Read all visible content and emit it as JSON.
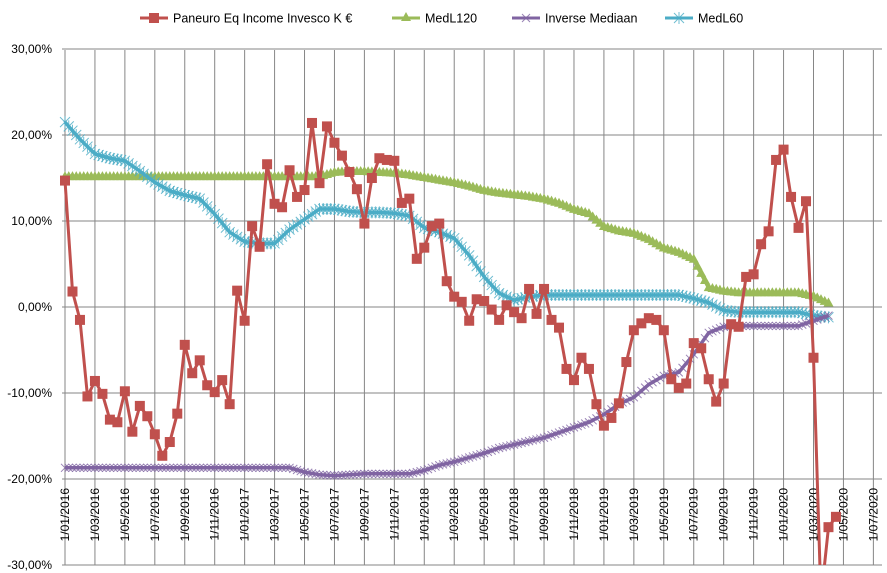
{
  "chart_data": {
    "type": "line",
    "title": "",
    "xlabel": "",
    "ylabel": "",
    "ylim": [
      -30,
      30
    ],
    "y_ticks": [
      30,
      20,
      10,
      0,
      -10,
      -20,
      -30
    ],
    "y_tick_labels": [
      "30,00%",
      "20,00%",
      "10,00%",
      "0,00%",
      "-10,00%",
      "-20,00%",
      "-30,00%"
    ],
    "x_unit": "months since 1/01/2016",
    "xlim": [
      0,
      54
    ],
    "x_tick_labels": [
      "1/01/2016",
      "1/03/2016",
      "1/05/2016",
      "1/07/2016",
      "1/09/2016",
      "1/11/2016",
      "1/01/2017",
      "1/03/2017",
      "1/05/2017",
      "1/07/2017",
      "1/09/2017",
      "1/11/2017",
      "1/01/2018",
      "1/03/2018",
      "1/05/2018",
      "1/07/2018",
      "1/09/2018",
      "1/11/2018",
      "1/01/2019",
      "1/03/2019",
      "1/05/2019",
      "1/07/2019",
      "1/09/2019",
      "1/11/2019",
      "1/01/2020",
      "1/03/2020",
      "1/05/2020",
      "1/07/2020"
    ],
    "grid": true,
    "legend_position": "top",
    "series": [
      {
        "name": "Paneuro Eq Income Invesco K €",
        "color": "#C0504D",
        "marker": "square",
        "x_step_months": 0.5,
        "values": [
          14.7,
          1.8,
          -1.5,
          -10.4,
          -8.6,
          -10.1,
          -13.1,
          -13.4,
          -9.8,
          -14.5,
          -11.5,
          -12.7,
          -14.8,
          -17.3,
          -15.7,
          -12.4,
          -4.4,
          -7.7,
          -6.2,
          -9.1,
          -9.9,
          -8.5,
          -11.3,
          1.9,
          -1.6,
          9.4,
          7.0,
          16.6,
          12.0,
          11.6,
          15.9,
          12.8,
          13.6,
          21.4,
          14.4,
          21.0,
          19.1,
          17.6,
          15.7,
          13.7,
          9.7,
          15.0,
          17.3,
          17.1,
          17.0,
          12.1,
          12.6,
          5.6,
          6.9,
          9.4,
          9.7,
          3.0,
          1.2,
          0.6,
          -1.6,
          0.9,
          0.7,
          -0.3,
          -1.5,
          0.2,
          -0.6,
          -1.3,
          2.1,
          -0.8,
          2.1,
          -1.5,
          -2.4,
          -7.2,
          -8.5,
          -5.9,
          -7.2,
          -11.3,
          -13.8,
          -12.9,
          -11.2,
          -6.4,
          -2.7,
          -1.9,
          -1.3,
          -1.5,
          -2.7,
          -8.4,
          -9.4,
          -8.9,
          -4.2,
          -4.8,
          -8.4,
          -11.0,
          -8.9,
          -2.0,
          -2.3,
          3.5,
          3.8,
          7.3,
          8.8,
          17.1,
          18.3,
          12.8,
          9.2,
          12.3,
          -5.9,
          -34,
          -25.6,
          -24.4
        ]
      },
      {
        "name": "MedL120",
        "color": "#9BBB59",
        "marker": "triangle",
        "x_step_months": 1,
        "values": [
          15.1,
          15.1,
          15.1,
          15.1,
          15.1,
          15.1,
          15.1,
          15.1,
          15.1,
          15.1,
          15.1,
          15.1,
          15.1,
          15.1,
          15.1,
          15.1,
          15.1,
          15.1,
          15.6,
          15.7,
          15.7,
          15.6,
          15.5,
          15.3,
          15.0,
          14.7,
          14.4,
          14.0,
          13.5,
          13.2,
          13.0,
          12.8,
          12.5,
          12.0,
          11.3,
          10.8,
          9.3,
          8.8,
          8.5,
          7.8,
          6.8,
          6.3,
          5.5,
          2.2,
          1.8,
          1.6,
          1.6,
          1.6,
          1.6,
          1.6,
          1.2,
          0.4
        ]
      },
      {
        "name": "Inverse Mediaan",
        "color": "#8064A2",
        "marker": "x",
        "x_step_months": 1,
        "values": [
          -18.7,
          -18.7,
          -18.7,
          -18.7,
          -18.7,
          -18.7,
          -18.7,
          -18.7,
          -18.7,
          -18.7,
          -18.7,
          -18.7,
          -18.7,
          -18.7,
          -18.7,
          -18.7,
          -19.2,
          -19.5,
          -19.6,
          -19.5,
          -19.4,
          -19.4,
          -19.4,
          -19.4,
          -19.0,
          -18.4,
          -18.0,
          -17.5,
          -17.0,
          -16.4,
          -16.0,
          -15.6,
          -15.2,
          -14.6,
          -14.0,
          -13.4,
          -12.5,
          -11.3,
          -10.5,
          -9.0,
          -8.0,
          -7.6,
          -5.5,
          -3.0,
          -2.3,
          -2.2,
          -2.2,
          -2.2,
          -2.2,
          -2.2,
          -1.6,
          -1.0
        ]
      },
      {
        "name": "MedL60",
        "color": "#4BACC6",
        "marker": "asterisk",
        "x_step_months": 1,
        "values": [
          21.5,
          19.5,
          17.8,
          17.3,
          17.0,
          15.8,
          14.5,
          13.5,
          13.0,
          12.6,
          10.8,
          8.7,
          7.6,
          7.4,
          7.4,
          9.0,
          10.2,
          11.4,
          11.4,
          11.1,
          11.0,
          11.0,
          10.9,
          10.6,
          9.2,
          8.7,
          8.0,
          6.0,
          3.5,
          1.6,
          0.8,
          1.2,
          1.4,
          1.4,
          1.4,
          1.4,
          1.4,
          1.4,
          1.4,
          1.4,
          1.4,
          1.4,
          1.0,
          0.5,
          -0.4,
          -0.6,
          -0.6,
          -0.6,
          -0.6,
          -0.6,
          -1.0,
          -1.2
        ]
      }
    ]
  }
}
